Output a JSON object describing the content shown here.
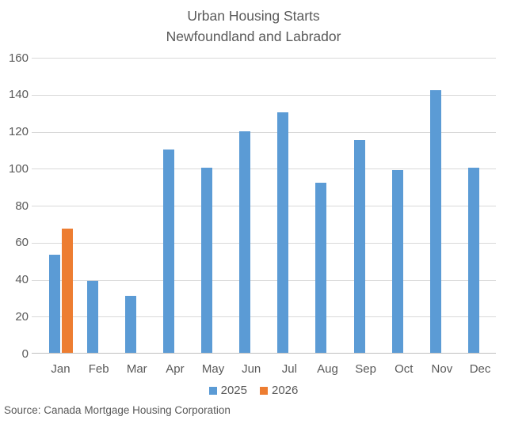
{
  "title": {
    "line1": "Urban Housing Starts",
    "line2": "Newfoundland and Labrador"
  },
  "source": "Source: Canada Mortgage Housing Corporation",
  "colors": {
    "series_2025": "#5B9BD5",
    "series_2026": "#ED7D31",
    "gridline": "#D9D9D9",
    "axis_line": "#BFBFBF",
    "text": "#595959"
  },
  "chart_data": {
    "type": "bar",
    "title": "Urban Housing Starts Newfoundland and Labrador",
    "categories": [
      "Jan",
      "Feb",
      "Mar",
      "Apr",
      "May",
      "Jun",
      "Jul",
      "Aug",
      "Sep",
      "Oct",
      "Nov",
      "Dec"
    ],
    "series": [
      {
        "name": "2025",
        "color": "#5B9BD5",
        "values": [
          53,
          39,
          31,
          110,
          100,
          120,
          130,
          92,
          115,
          99,
          142,
          100
        ]
      },
      {
        "name": "2026",
        "color": "#ED7D31",
        "values": [
          67,
          null,
          null,
          null,
          null,
          null,
          null,
          null,
          null,
          null,
          null,
          null
        ]
      }
    ],
    "xlabel": "",
    "ylabel": "",
    "ylim": [
      0,
      160
    ],
    "ytick_interval": 20,
    "yticks": [
      0,
      20,
      40,
      60,
      80,
      100,
      120,
      140,
      160
    ],
    "grid": "horizontal",
    "legend_position": "bottom"
  }
}
